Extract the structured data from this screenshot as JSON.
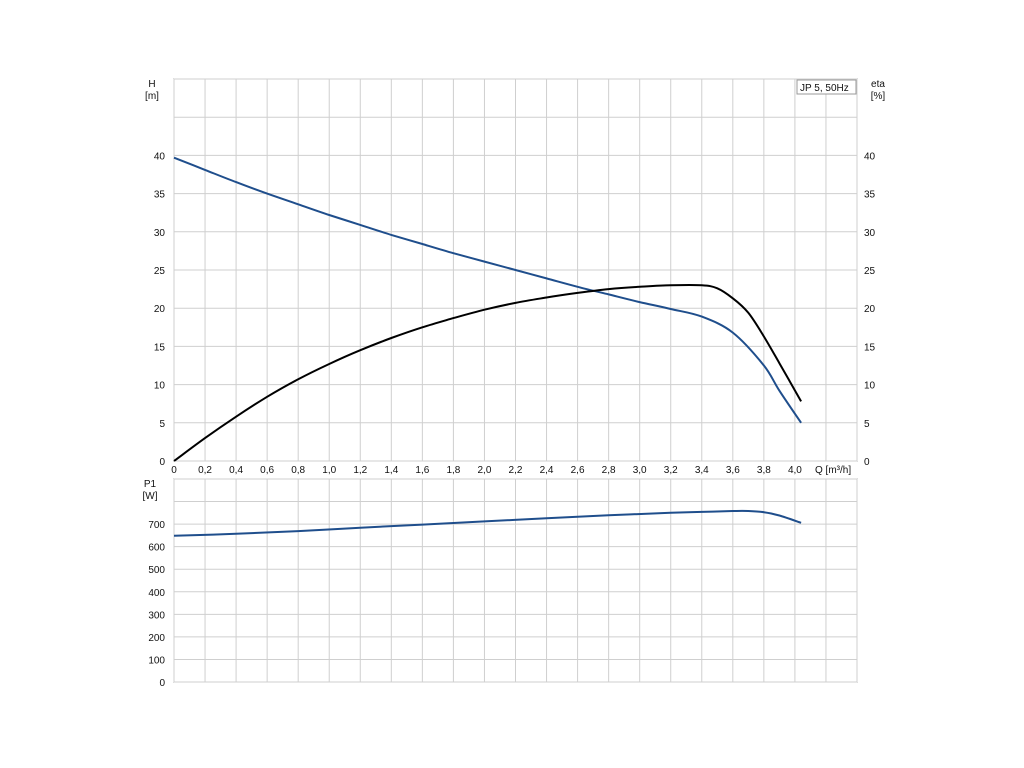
{
  "chart_data": [
    {
      "type": "line",
      "legend": "JP 5, 50Hz",
      "legend_position": "top-right",
      "grid": true,
      "x_ticks": [
        "0",
        "0,2",
        "0,4",
        "0,6",
        "0,8",
        "1,0",
        "1,2",
        "1,4",
        "1,6",
        "1,8",
        "2,0",
        "2,2",
        "2,4",
        "2,6",
        "2,8",
        "3,0",
        "3,2",
        "3,4",
        "3,6",
        "3,8",
        "4,0"
      ],
      "xlabel": "Q [m³/h]",
      "xlim": [
        0,
        4.4
      ],
      "ylabel_left": {
        "name": "H",
        "unit": "[m]"
      },
      "ylabel_right": {
        "name": "eta",
        "unit": "[%]"
      },
      "ylim": [
        0,
        50
      ],
      "y_ticks": [
        0,
        5,
        10,
        15,
        20,
        25,
        30,
        35,
        40
      ],
      "series": [
        {
          "axis": "left",
          "color": "#1f4e8c",
          "points": [
            [
              0,
              39.7
            ],
            [
              0.2,
              38.1
            ],
            [
              0.4,
              36.5
            ],
            [
              0.6,
              35.0
            ],
            [
              0.8,
              33.6
            ],
            [
              1.0,
              32.2
            ],
            [
              1.2,
              30.9
            ],
            [
              1.4,
              29.6
            ],
            [
              1.6,
              28.4
            ],
            [
              1.8,
              27.2
            ],
            [
              2.0,
              26.1
            ],
            [
              2.2,
              25.0
            ],
            [
              2.4,
              23.9
            ],
            [
              2.6,
              22.8
            ],
            [
              2.8,
              21.8
            ],
            [
              3.0,
              20.8
            ],
            [
              3.2,
              19.9
            ],
            [
              3.4,
              18.9
            ],
            [
              3.6,
              16.8
            ],
            [
              3.8,
              12.5
            ],
            [
              3.9,
              9.2
            ],
            [
              4.04,
              5.0
            ]
          ]
        },
        {
          "axis": "right",
          "color": "#000000",
          "points": [
            [
              0,
              0
            ],
            [
              0.2,
              3.0
            ],
            [
              0.4,
              5.8
            ],
            [
              0.6,
              8.4
            ],
            [
              0.8,
              10.7
            ],
            [
              1.0,
              12.7
            ],
            [
              1.2,
              14.5
            ],
            [
              1.4,
              16.1
            ],
            [
              1.6,
              17.5
            ],
            [
              1.8,
              18.7
            ],
            [
              2.0,
              19.8
            ],
            [
              2.2,
              20.7
            ],
            [
              2.4,
              21.4
            ],
            [
              2.6,
              22.0
            ],
            [
              2.8,
              22.5
            ],
            [
              3.0,
              22.8
            ],
            [
              3.2,
              23.0
            ],
            [
              3.4,
              23.0
            ],
            [
              3.5,
              22.6
            ],
            [
              3.6,
              21.3
            ],
            [
              3.7,
              19.4
            ],
            [
              3.8,
              16.3
            ],
            [
              3.9,
              12.8
            ],
            [
              4.04,
              7.8
            ]
          ]
        }
      ]
    },
    {
      "type": "line",
      "grid": true,
      "xlim": [
        0,
        4.4
      ],
      "ylabel": {
        "name": "P1",
        "unit": "[W]"
      },
      "ylim": [
        0,
        900
      ],
      "y_ticks": [
        0,
        100,
        200,
        300,
        400,
        500,
        600,
        700
      ],
      "series": [
        {
          "axis": "left",
          "color": "#1f4e8c",
          "points": [
            [
              0,
              648
            ],
            [
              0.4,
              657
            ],
            [
              0.8,
              669
            ],
            [
              1.2,
              684
            ],
            [
              1.6,
              698
            ],
            [
              2.0,
              712
            ],
            [
              2.4,
              726
            ],
            [
              2.8,
              739
            ],
            [
              3.2,
              750
            ],
            [
              3.4,
              754
            ],
            [
              3.6,
              758
            ],
            [
              3.7,
              758
            ],
            [
              3.8,
              753
            ],
            [
              3.9,
              738
            ],
            [
              4.04,
              706
            ]
          ]
        }
      ]
    }
  ]
}
